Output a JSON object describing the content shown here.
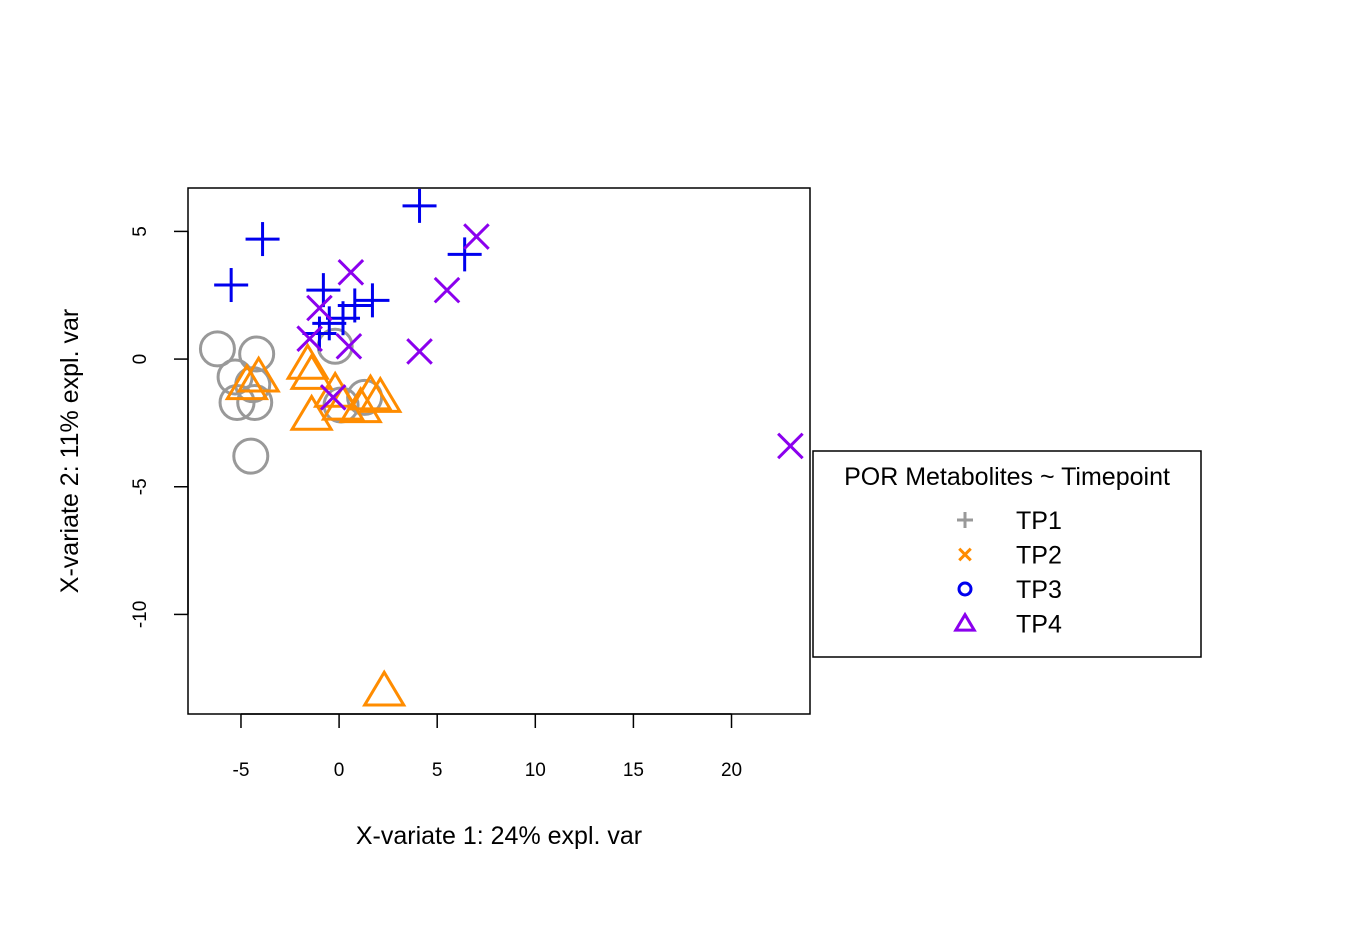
{
  "chart_data": {
    "type": "scatter",
    "title": "",
    "xlabel": "X-variate 1: 24% expl. var",
    "ylabel": "X-variate 2: 11% expl. var",
    "xlim": [
      -7.7,
      24
    ],
    "ylim": [
      -13.9,
      6.7
    ],
    "xticks": [
      -5,
      0,
      5,
      10,
      15,
      20
    ],
    "yticks": [
      5,
      0,
      -5,
      -10
    ],
    "grid": false,
    "legend": {
      "title": "POR Metabolites ~ Timepoint",
      "placement": "right",
      "entries": [
        {
          "label": "TP1",
          "color": "#999999",
          "marker": "plus"
        },
        {
          "label": "TP2",
          "color": "#FF8C00",
          "marker": "x"
        },
        {
          "label": "TP3",
          "color": "#0000EE",
          "marker": "circle"
        },
        {
          "label": "TP4",
          "color": "#8B00EE",
          "marker": "triangle"
        }
      ]
    },
    "series": [
      {
        "color": "#999999",
        "marker": "circle",
        "points": [
          [
            -6.2,
            0.4
          ],
          [
            -4.2,
            0.2
          ],
          [
            -5.3,
            -0.7
          ],
          [
            -4.4,
            -1.0
          ],
          [
            -5.2,
            -1.7
          ],
          [
            -4.3,
            -1.7
          ],
          [
            -4.5,
            -3.8
          ],
          [
            -0.2,
            0.5
          ],
          [
            0.1,
            -1.8
          ],
          [
            1.3,
            -1.5
          ]
        ]
      },
      {
        "color": "#FF8C00",
        "marker": "triangle",
        "points": [
          [
            -1.6,
            -0.2
          ],
          [
            -1.4,
            -0.6
          ],
          [
            -4.1,
            -0.7
          ],
          [
            -4.7,
            -1.0
          ],
          [
            -0.2,
            -1.3
          ],
          [
            -1.4,
            -2.2
          ],
          [
            0.2,
            -1.8
          ],
          [
            1.1,
            -1.9
          ],
          [
            1.6,
            -1.4
          ],
          [
            2.1,
            -1.5
          ],
          [
            2.3,
            -13.0
          ]
        ]
      },
      {
        "color": "#0000EE",
        "marker": "plus",
        "points": [
          [
            -5.5,
            2.9
          ],
          [
            -3.9,
            4.7
          ],
          [
            -0.8,
            2.7
          ],
          [
            -1.0,
            1.0
          ],
          [
            -0.5,
            1.4
          ],
          [
            0.2,
            1.6
          ],
          [
            0.8,
            2.1
          ],
          [
            1.7,
            2.3
          ],
          [
            4.1,
            6.0
          ],
          [
            6.4,
            4.1
          ]
        ]
      },
      {
        "color": "#8B00EE",
        "marker": "x",
        "points": [
          [
            0.6,
            3.4
          ],
          [
            -1.0,
            2.0
          ],
          [
            -1.5,
            0.8
          ],
          [
            0.5,
            0.5
          ],
          [
            -0.3,
            -1.5
          ],
          [
            4.1,
            0.3
          ],
          [
            5.5,
            2.7
          ],
          [
            7.0,
            4.8
          ],
          [
            23.0,
            -3.4
          ]
        ]
      }
    ]
  }
}
